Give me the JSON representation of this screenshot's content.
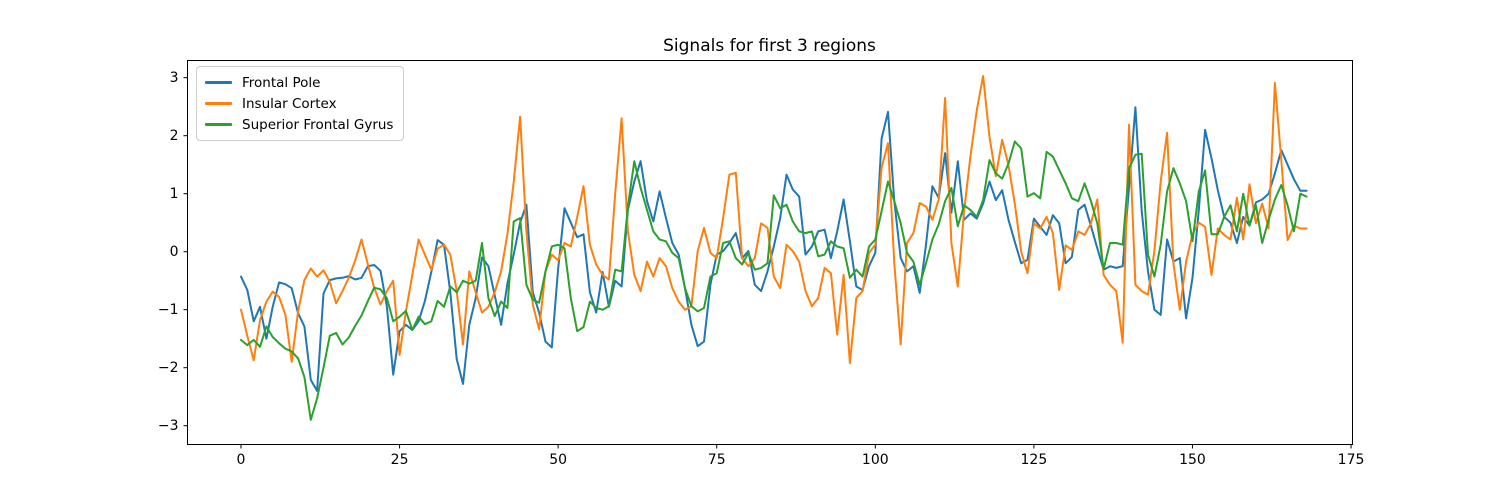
{
  "title": "Signals for first 3 regions",
  "chart_data": {
    "type": "line",
    "x_start": 0,
    "x_step": 1,
    "n_points": 169,
    "xlabel": "",
    "ylabel": "",
    "grid": false,
    "legend_position": "upper left",
    "xlim": [
      -8.5,
      175.2
    ],
    "ylim": [
      -3.32,
      3.31
    ],
    "x_ticks": [
      0,
      25,
      50,
      75,
      100,
      125,
      150,
      175
    ],
    "x_tick_labels": [
      "0",
      "25",
      "50",
      "75",
      "100",
      "125",
      "150",
      "175"
    ],
    "y_ticks": [
      -3,
      -2,
      -1,
      0,
      1,
      2,
      3
    ],
    "y_tick_labels": [
      "−3",
      "−2",
      "−1",
      "0",
      "1",
      "2",
      "3"
    ],
    "series": [
      {
        "name": "Frontal Pole",
        "color": "#1f77b4",
        "values": [
          -0.43,
          -0.66,
          -1.2,
          -0.95,
          -1.5,
          -0.95,
          -0.53,
          -0.56,
          -0.63,
          -1.06,
          -1.29,
          -2.21,
          -2.4,
          -0.72,
          -0.49,
          -0.46,
          -0.45,
          -0.42,
          -0.48,
          -0.45,
          -0.25,
          -0.23,
          -0.33,
          -0.95,
          -2.12,
          -1.37,
          -1.26,
          -1.35,
          -1.2,
          -0.85,
          -0.35,
          0.2,
          0.12,
          -0.7,
          -1.85,
          -2.28,
          -1.26,
          -0.8,
          -0.1,
          -0.25,
          -0.75,
          -1.26,
          -0.55,
          -0.05,
          0.5,
          0.81,
          -0.7,
          -1.05,
          -1.55,
          -1.65,
          -0.3,
          0.75,
          0.5,
          0.25,
          0.3,
          -0.7,
          -1.05,
          -0.35,
          -0.95,
          -0.5,
          -0.6,
          0.72,
          1.21,
          1.56,
          0.87,
          0.52,
          1.04,
          0.58,
          0.15,
          -0.05,
          -0.63,
          -1.26,
          -1.63,
          -1.55,
          -0.57,
          -0.05,
          0.01,
          0.15,
          0.32,
          -0.11,
          0.01,
          -0.57,
          -0.68,
          -0.34,
          0.09,
          0.58,
          1.33,
          1.07,
          0.95,
          -0.05,
          0.09,
          0.35,
          0.38,
          -0.11,
          0.35,
          0.9,
          0.18,
          -0.6,
          -0.66,
          -0.25,
          -0.02,
          1.95,
          2.41,
          0.87,
          -0.11,
          -0.34,
          -0.25,
          -0.71,
          0.12,
          1.13,
          0.93,
          1.7,
          0.67,
          1.56,
          0.55,
          0.66,
          0.57,
          0.83,
          1.21,
          0.89,
          1.06,
          0.55,
          0.17,
          -0.2,
          -0.14,
          0.57,
          0.43,
          0.29,
          0.63,
          0.49,
          -0.2,
          -0.09,
          0.72,
          0.81,
          0.44,
          0.06,
          -0.31,
          -0.25,
          -0.28,
          -0.25,
          1.1,
          2.49,
          0.7,
          -0.34,
          -1.0,
          -1.09,
          0.21,
          -0.17,
          -0.11,
          -1.15,
          -0.45,
          0.72,
          2.1,
          1.61,
          1.06,
          0.6,
          0.5,
          0.15,
          0.6,
          0.45,
          0.85,
          0.9,
          1.0,
          1.35,
          1.75,
          1.5,
          1.25,
          1.05,
          1.05
        ]
      },
      {
        "name": "Insular Cortex",
        "color": "#ff7f0e",
        "values": [
          -1.0,
          -1.45,
          -1.87,
          -1.18,
          -0.86,
          -0.69,
          -0.78,
          -1.09,
          -1.9,
          -1.03,
          -0.49,
          -0.29,
          -0.43,
          -0.32,
          -0.52,
          -0.89,
          -0.68,
          -0.45,
          -0.15,
          0.21,
          -0.22,
          -0.62,
          -0.91,
          -0.68,
          -0.5,
          -1.78,
          -1.03,
          -0.4,
          0.21,
          -0.05,
          -0.31,
          0.05,
          0.12,
          -0.05,
          -0.68,
          -1.6,
          -0.34,
          -0.7,
          -1.05,
          -0.95,
          -0.7,
          -0.34,
          0.3,
          1.2,
          2.33,
          0.35,
          -0.91,
          -1.34,
          -0.34,
          -0.05,
          -0.15,
          0.15,
          0.09,
          0.6,
          1.13,
          0.12,
          -0.22,
          -0.4,
          -0.48,
          1.0,
          2.3,
          0.35,
          -0.4,
          -0.68,
          -0.17,
          -0.43,
          -0.11,
          -0.25,
          -0.63,
          -0.86,
          -1.0,
          -0.94,
          0.01,
          0.41,
          -0.02,
          -0.11,
          0.58,
          1.33,
          1.36,
          -0.11,
          -0.25,
          -0.11,
          0.49,
          0.41,
          -0.43,
          -0.63,
          0.12,
          0.01,
          -0.17,
          -0.68,
          -0.94,
          -0.8,
          -0.28,
          -0.37,
          -1.43,
          -0.4,
          -1.92,
          -0.8,
          -0.68,
          -0.02,
          0.12,
          1.45,
          1.87,
          -0.2,
          -1.6,
          0.15,
          0.32,
          0.84,
          0.78,
          0.55,
          0.9,
          2.65,
          0.15,
          -0.6,
          0.7,
          1.64,
          2.44,
          3.03,
          1.98,
          1.3,
          1.93,
          1.49,
          0.83,
          0.0,
          -0.37,
          0.49,
          0.4,
          0.6,
          0.32,
          -0.66,
          0.11,
          0.03,
          0.35,
          0.29,
          0.49,
          0.9,
          -0.4,
          -0.57,
          -0.68,
          -1.57,
          2.19,
          -0.57,
          -0.68,
          -0.74,
          0.01,
          1.21,
          2.05,
          -0.2,
          -1.0,
          -0.17,
          0.3,
          0.5,
          0.43,
          -0.4,
          0.4,
          0.29,
          0.21,
          0.93,
          0.21,
          1.16,
          0.49,
          0.83,
          0.4,
          2.91,
          1.58,
          0.2,
          0.45,
          0.4,
          0.4
        ]
      },
      {
        "name": "Superior Frontal Gyrus",
        "color": "#2ca02c",
        "values": [
          -1.52,
          -1.61,
          -1.52,
          -1.64,
          -1.29,
          -1.47,
          -1.58,
          -1.67,
          -1.72,
          -1.84,
          -2.16,
          -2.9,
          -2.53,
          -2.0,
          -1.45,
          -1.4,
          -1.6,
          -1.48,
          -1.28,
          -1.1,
          -0.85,
          -0.62,
          -0.65,
          -0.8,
          -1.2,
          -1.12,
          -1.02,
          -1.35,
          -1.12,
          -1.25,
          -1.2,
          -0.85,
          -0.95,
          -0.6,
          -0.7,
          -0.5,
          -0.55,
          -0.5,
          0.15,
          -0.8,
          -1.11,
          -0.86,
          -0.97,
          0.52,
          0.58,
          -0.57,
          -0.83,
          -0.88,
          -0.34,
          0.09,
          0.12,
          0.06,
          -0.8,
          -1.37,
          -1.3,
          -0.86,
          -0.97,
          -1.0,
          -0.94,
          -0.31,
          -0.34,
          0.78,
          1.56,
          1.1,
          0.72,
          0.35,
          0.21,
          0.18,
          -0.02,
          -0.11,
          -0.63,
          -0.94,
          -1.03,
          -0.97,
          -0.43,
          -0.37,
          0.15,
          0.18,
          -0.11,
          -0.22,
          -0.02,
          -0.31,
          -0.28,
          -0.2,
          0.97,
          0.75,
          0.81,
          0.52,
          0.35,
          0.32,
          0.35,
          -0.08,
          -0.05,
          0.18,
          0.09,
          0.06,
          -0.45,
          -0.31,
          -0.43,
          0.09,
          0.21,
          0.7,
          1.21,
          0.87,
          0.49,
          -0.02,
          -0.17,
          -0.57,
          -0.2,
          0.21,
          0.47,
          0.87,
          1.1,
          0.44,
          0.8,
          0.72,
          0.6,
          0.89,
          1.58,
          1.35,
          1.26,
          1.52,
          1.9,
          1.78,
          0.95,
          1.01,
          0.92,
          1.72,
          1.64,
          1.41,
          1.18,
          0.92,
          0.87,
          1.18,
          0.87,
          0.49,
          -0.3,
          0.15,
          0.15,
          0.12,
          1.44,
          1.67,
          1.69,
          -0.05,
          -0.43,
          0.12,
          1.04,
          1.44,
          1.18,
          0.87,
          0.18,
          1.04,
          1.4,
          0.3,
          0.3,
          0.6,
          0.8,
          0.35,
          1.0,
          0.45,
          0.8,
          0.15,
          0.55,
          0.9,
          1.15,
          0.8,
          0.35,
          1.0,
          0.95
        ]
      }
    ]
  },
  "layout_colors": {
    "axes_edge": "#000000",
    "tick_label": "#000000",
    "background": "#ffffff",
    "legend_border": "#cccccc"
  }
}
